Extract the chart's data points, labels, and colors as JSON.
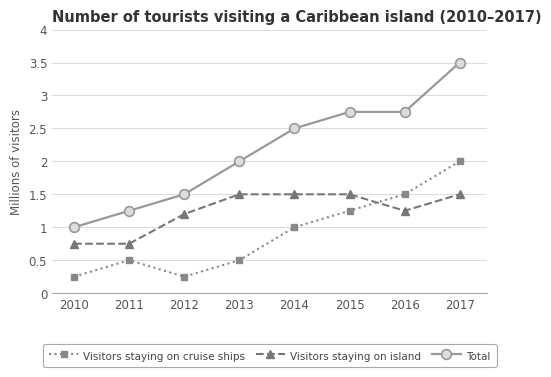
{
  "title": "Number of tourists visiting a Caribbean island (2010–2017)",
  "ylabel": "Millions of visitors",
  "years": [
    2010,
    2011,
    2012,
    2013,
    2014,
    2015,
    2016,
    2017
  ],
  "total": [
    1.0,
    1.25,
    1.5,
    2.0,
    2.5,
    2.75,
    2.75,
    3.5
  ],
  "island": [
    0.75,
    0.75,
    1.2,
    1.5,
    1.5,
    1.5,
    1.25,
    1.5
  ],
  "cruise": [
    0.25,
    0.5,
    0.25,
    0.5,
    1.0,
    1.25,
    1.5,
    2.0
  ],
  "color_total": "#999999",
  "color_island": "#777777",
  "color_cruise": "#888888",
  "ylim": [
    0,
    4
  ],
  "yticks": [
    0,
    0.5,
    1.0,
    1.5,
    2.0,
    2.5,
    3.0,
    3.5,
    4.0
  ],
  "ytick_labels": [
    "0",
    "0.5",
    "1",
    "1.5",
    "2",
    "2.5",
    "3",
    "3.5",
    "4"
  ],
  "bg_color": "#ffffff",
  "grid_color": "#dddddd",
  "title_fontsize": 10.5,
  "label_fontsize": 8.5,
  "tick_fontsize": 8.5,
  "legend_fontsize": 7.5
}
